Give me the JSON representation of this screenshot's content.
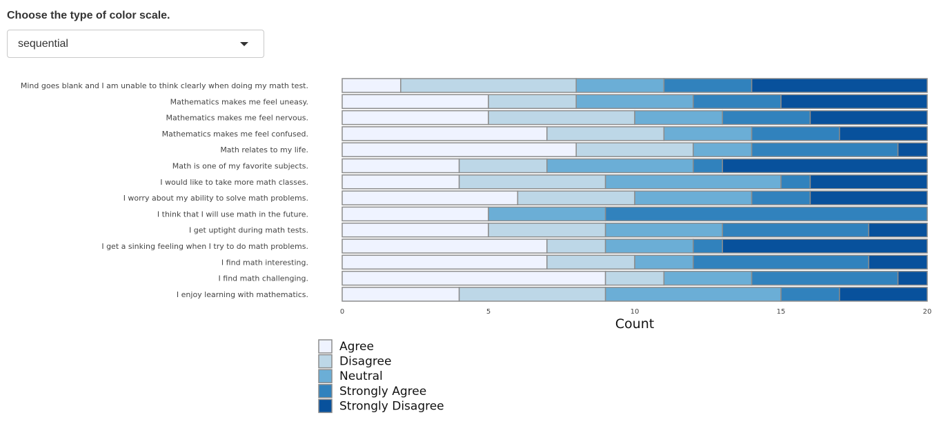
{
  "control": {
    "label": "Choose the type of color scale.",
    "selected": "sequential"
  },
  "icons": {
    "dropdown": "chevron-down-icon"
  },
  "chart_data": {
    "type": "bar",
    "orientation": "horizontal",
    "stacked": true,
    "title": "",
    "xlabel": "Count",
    "ylabel": "",
    "xlim": [
      0,
      20
    ],
    "xticks": [
      0,
      5,
      10,
      15,
      20
    ],
    "legend_position": "bottom",
    "categories": [
      "Mind goes blank and I am unable to think clearly when doing my math test.",
      "Mathematics makes me feel uneasy.",
      "Mathematics makes me feel nervous.",
      "Mathematics makes me feel confused.",
      "Math relates to my life.",
      "Math is one of my favorite subjects.",
      "I would like to take more math classes.",
      "I worry about my ability to solve math problems.",
      "I think that I will use math in the future.",
      "I get uptight during math tests.",
      "I get a sinking feeling when I try to do math problems.",
      "I find math interesting.",
      "I find math challenging.",
      "I enjoy learning with mathematics."
    ],
    "series": [
      {
        "name": "Agree",
        "color": "#eff3ff",
        "values": [
          2,
          5,
          5,
          7,
          8,
          4,
          4,
          6,
          5,
          5,
          7,
          7,
          9,
          4
        ]
      },
      {
        "name": "Disagree",
        "color": "#bdd7e7",
        "values": [
          6,
          3,
          5,
          4,
          4,
          3,
          5,
          4,
          0,
          4,
          2,
          3,
          2,
          5
        ]
      },
      {
        "name": "Neutral",
        "color": "#6baed6",
        "values": [
          3,
          4,
          3,
          3,
          2,
          5,
          6,
          4,
          4,
          4,
          3,
          2,
          3,
          6
        ]
      },
      {
        "name": "Strongly Agree",
        "color": "#3182bd",
        "values": [
          3,
          3,
          3,
          3,
          5,
          1,
          1,
          2,
          11,
          5,
          1,
          6,
          5,
          2
        ]
      },
      {
        "name": "Strongly Disagree",
        "color": "#08519c",
        "values": [
          6,
          5,
          4,
          3,
          1,
          7,
          4,
          4,
          0,
          2,
          7,
          2,
          1,
          3
        ]
      }
    ]
  }
}
